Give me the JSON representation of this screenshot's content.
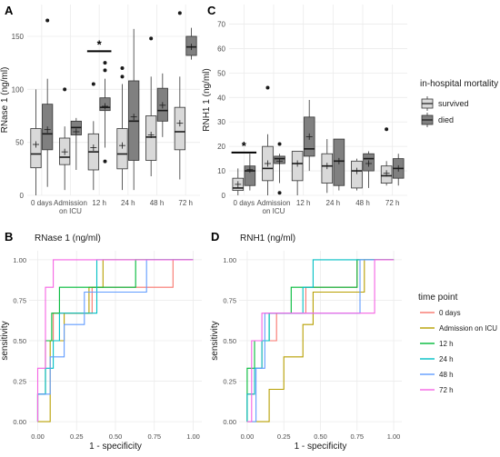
{
  "chart_data": [
    {
      "panel_letter": "A",
      "type": "box",
      "ylabel": "RNase 1 (ng/ml)",
      "ylim": [
        0,
        180
      ],
      "yticks": [
        0,
        50,
        100,
        150
      ],
      "categories": [
        "0 days",
        "Admission on ICU",
        "12 h",
        "24 h",
        "48 h",
        "72 h"
      ],
      "category_lines": [
        [
          "0 days"
        ],
        [
          "Admission",
          "on ICU"
        ],
        [
          "12 h"
        ],
        [
          "24 h"
        ],
        [
          "48 h"
        ],
        [
          "72 h"
        ]
      ],
      "groups": [
        {
          "category": "0 days",
          "series": "survived",
          "min": 0,
          "q1": 26,
          "median": 39,
          "q3": 63,
          "max": 100,
          "mean": 48,
          "outliers": []
        },
        {
          "category": "0 days",
          "series": "died",
          "min": 8,
          "q1": 43,
          "median": 58,
          "q3": 86,
          "max": 110,
          "mean": 62,
          "outliers": [
            165
          ]
        },
        {
          "category": "Admission on ICU",
          "series": "survived",
          "min": 5,
          "q1": 29,
          "median": 36,
          "q3": 54,
          "max": 65,
          "mean": 41,
          "outliers": [
            100
          ]
        },
        {
          "category": "Admission on ICU",
          "series": "died",
          "min": 24,
          "q1": 57,
          "median": 64,
          "q3": 70,
          "max": 73,
          "mean": 60,
          "outliers": []
        },
        {
          "category": "12 h",
          "series": "survived",
          "min": 5,
          "q1": 24,
          "median": 41,
          "q3": 58,
          "max": 70,
          "mean": 45,
          "outliers": [
            105
          ]
        },
        {
          "category": "12 h",
          "series": "died",
          "min": 45,
          "q1": 80,
          "median": 83,
          "q3": 92,
          "max": 110,
          "mean": 84,
          "outliers": [
            125,
            118,
            32
          ]
        },
        {
          "category": "24 h",
          "series": "survived",
          "min": 5,
          "q1": 25,
          "median": 39,
          "q3": 63,
          "max": 105,
          "mean": 47,
          "outliers": [
            120,
            112
          ]
        },
        {
          "category": "24 h",
          "series": "died",
          "min": 5,
          "q1": 33,
          "median": 70,
          "q3": 108,
          "max": 157,
          "mean": 74,
          "outliers": []
        },
        {
          "category": "48 h",
          "series": "survived",
          "min": 18,
          "q1": 33,
          "median": 55,
          "q3": 75,
          "max": 112,
          "mean": 57,
          "outliers": [
            148
          ]
        },
        {
          "category": "48 h",
          "series": "died",
          "min": 55,
          "q1": 70,
          "median": 80,
          "q3": 101,
          "max": 115,
          "mean": 85,
          "outliers": []
        },
        {
          "category": "72 h",
          "series": "survived",
          "min": 15,
          "q1": 43,
          "median": 60,
          "q3": 83,
          "max": 112,
          "mean": 68,
          "outliers": [
            172
          ]
        },
        {
          "category": "72 h",
          "series": "died",
          "min": 128,
          "q1": 132,
          "median": 140,
          "q3": 150,
          "max": 158,
          "mean": 140,
          "outliers": []
        }
      ],
      "significance": {
        "category": "12 h",
        "label": "*",
        "y": 136
      }
    },
    {
      "panel_letter": "C",
      "type": "box",
      "ylabel": "RNH1 1 (ng/ml)",
      "ylim": [
        0,
        78
      ],
      "yticks": [
        0,
        10,
        20,
        30,
        40,
        50,
        60,
        70
      ],
      "categories": [
        "0 days",
        "Admission on ICU",
        "12 h",
        "24 h",
        "48 h",
        "72 h"
      ],
      "category_lines": [
        [
          "0 days"
        ],
        [
          "Admission",
          "on ICU"
        ],
        [
          "12 h"
        ],
        [
          "24 h"
        ],
        [
          "48 h"
        ],
        [
          "72 h"
        ]
      ],
      "groups": [
        {
          "category": "0 days",
          "series": "survived",
          "min": 0,
          "q1": 2,
          "median": 3,
          "q3": 7,
          "max": 11,
          "mean": 4.5,
          "outliers": []
        },
        {
          "category": "0 days",
          "series": "died",
          "min": 2,
          "q1": 4,
          "median": 10,
          "q3": 12,
          "max": 17,
          "mean": 10.5,
          "outliers": []
        },
        {
          "category": "Admission on ICU",
          "series": "survived",
          "min": 0,
          "q1": 6,
          "median": 11,
          "q3": 20,
          "max": 25,
          "mean": 13,
          "outliers": [
            44
          ]
        },
        {
          "category": "Admission on ICU",
          "series": "died",
          "min": 5,
          "q1": 13,
          "median": 15,
          "q3": 16,
          "max": 17,
          "mean": 14,
          "outliers": [
            21,
            1
          ]
        },
        {
          "category": "12 h",
          "series": "survived",
          "min": 0,
          "q1": 6,
          "median": 13,
          "q3": 18,
          "max": 18,
          "mean": 13,
          "outliers": []
        },
        {
          "category": "12 h",
          "series": "died",
          "min": 10,
          "q1": 16,
          "median": 19,
          "q3": 32,
          "max": 39,
          "mean": 24,
          "outliers": []
        },
        {
          "category": "24 h",
          "series": "survived",
          "min": 1,
          "q1": 5,
          "median": 12,
          "q3": 17,
          "max": 23,
          "mean": 12,
          "outliers": []
        },
        {
          "category": "24 h",
          "series": "died",
          "min": 2,
          "q1": 4,
          "median": 14,
          "q3": 23,
          "max": 23,
          "mean": 14,
          "outliers": []
        },
        {
          "category": "48 h",
          "series": "survived",
          "min": 2,
          "q1": 3,
          "median": 10,
          "q3": 14,
          "max": 15,
          "mean": 10,
          "outliers": []
        },
        {
          "category": "48 h",
          "series": "died",
          "min": 3,
          "q1": 10,
          "median": 15,
          "q3": 17,
          "max": 18,
          "mean": 13,
          "outliers": []
        },
        {
          "category": "72 h",
          "series": "survived",
          "min": 4,
          "q1": 5,
          "median": 8,
          "q3": 12,
          "max": 14,
          "mean": 9,
          "outliers": [
            27
          ]
        },
        {
          "category": "72 h",
          "series": "died",
          "min": 4,
          "q1": 7,
          "median": 11,
          "q3": 15,
          "max": 17,
          "mean": 11,
          "outliers": []
        }
      ],
      "significance": {
        "category": "0 days",
        "label": "*",
        "y": 17.5
      }
    },
    {
      "panel_letter": "B",
      "type": "line",
      "title": "RNase 1 (ng/ml)",
      "xlabel": "1 - specificity",
      "ylabel": "sensitivity",
      "xlim": [
        0,
        1
      ],
      "ylim": [
        0,
        1
      ],
      "xticks": [
        0,
        0.25,
        0.5,
        0.75,
        1
      ],
      "yticks": [
        0,
        0.25,
        0.5,
        0.75,
        1
      ],
      "series": [
        {
          "name": "0 days",
          "points": [
            [
              0,
              0
            ],
            [
              0,
              0.17
            ],
            [
              0.05,
              0.17
            ],
            [
              0.05,
              0.5
            ],
            [
              0.1,
              0.5
            ],
            [
              0.1,
              0.67
            ],
            [
              0.35,
              0.67
            ],
            [
              0.35,
              0.83
            ],
            [
              0.87,
              0.83
            ],
            [
              0.87,
              1
            ],
            [
              1,
              1
            ]
          ]
        },
        {
          "name": "Admission on ICU",
          "points": [
            [
              0,
              0
            ],
            [
              0.08,
              0
            ],
            [
              0.08,
              0.5
            ],
            [
              0.17,
              0.5
            ],
            [
              0.17,
              0.67
            ],
            [
              0.33,
              0.67
            ],
            [
              0.33,
              0.83
            ],
            [
              0.42,
              0.83
            ],
            [
              0.42,
              1
            ],
            [
              1,
              1
            ]
          ]
        },
        {
          "name": "12 h",
          "points": [
            [
              0,
              0
            ],
            [
              0,
              0.17
            ],
            [
              0.05,
              0.17
            ],
            [
              0.05,
              0.5
            ],
            [
              0.09,
              0.5
            ],
            [
              0.09,
              0.67
            ],
            [
              0.14,
              0.67
            ],
            [
              0.14,
              0.83
            ],
            [
              0.63,
              0.83
            ],
            [
              0.63,
              1
            ],
            [
              1,
              1
            ]
          ]
        },
        {
          "name": "24 h",
          "points": [
            [
              0,
              0
            ],
            [
              0,
              0.17
            ],
            [
              0.05,
              0.17
            ],
            [
              0.05,
              0.33
            ],
            [
              0.1,
              0.33
            ],
            [
              0.1,
              0.5
            ],
            [
              0.14,
              0.5
            ],
            [
              0.14,
              0.67
            ],
            [
              0.38,
              0.67
            ],
            [
              0.38,
              1
            ],
            [
              1,
              1
            ]
          ]
        },
        {
          "name": "48 h",
          "points": [
            [
              0,
              0
            ],
            [
              0,
              0.17
            ],
            [
              0.08,
              0.17
            ],
            [
              0.08,
              0.4
            ],
            [
              0.17,
              0.4
            ],
            [
              0.17,
              0.6
            ],
            [
              0.3,
              0.6
            ],
            [
              0.3,
              0.8
            ],
            [
              0.7,
              0.8
            ],
            [
              0.7,
              1
            ],
            [
              1,
              1
            ]
          ]
        },
        {
          "name": "72 h",
          "points": [
            [
              0,
              0
            ],
            [
              0,
              0.33
            ],
            [
              0.05,
              0.33
            ],
            [
              0.05,
              0.83
            ],
            [
              0.1,
              0.83
            ],
            [
              0.1,
              1
            ],
            [
              1,
              1
            ]
          ]
        }
      ]
    },
    {
      "panel_letter": "D",
      "type": "line",
      "title": "RNH1 (ng/ml)",
      "xlabel": "1 - specificity",
      "ylabel": "sensitivity",
      "xlim": [
        0,
        1
      ],
      "ylim": [
        0,
        1
      ],
      "xticks": [
        0,
        0.25,
        0.5,
        0.75,
        1
      ],
      "yticks": [
        0,
        0.25,
        0.5,
        0.75,
        1
      ],
      "series": [
        {
          "name": "0 days",
          "points": [
            [
              0,
              0
            ],
            [
              0,
              0.17
            ],
            [
              0.05,
              0.17
            ],
            [
              0.05,
              0.33
            ],
            [
              0.1,
              0.33
            ],
            [
              0.1,
              0.5
            ],
            [
              0.2,
              0.5
            ],
            [
              0.2,
              0.67
            ],
            [
              0.4,
              0.67
            ],
            [
              0.4,
              0.83
            ],
            [
              0.75,
              0.83
            ],
            [
              0.75,
              1
            ],
            [
              1,
              1
            ]
          ]
        },
        {
          "name": "Admission on ICU",
          "points": [
            [
              0,
              0
            ],
            [
              0.15,
              0
            ],
            [
              0.15,
              0.2
            ],
            [
              0.25,
              0.2
            ],
            [
              0.25,
              0.4
            ],
            [
              0.38,
              0.4
            ],
            [
              0.38,
              0.6
            ],
            [
              0.45,
              0.6
            ],
            [
              0.45,
              0.8
            ],
            [
              0.8,
              0.8
            ],
            [
              0.8,
              1
            ],
            [
              1,
              1
            ]
          ]
        },
        {
          "name": "12 h",
          "points": [
            [
              0,
              0
            ],
            [
              0,
              0.33
            ],
            [
              0.05,
              0.33
            ],
            [
              0.05,
              0.5
            ],
            [
              0.15,
              0.5
            ],
            [
              0.15,
              0.67
            ],
            [
              0.3,
              0.67
            ],
            [
              0.3,
              0.83
            ],
            [
              0.75,
              0.83
            ],
            [
              0.75,
              1
            ],
            [
              1,
              1
            ]
          ]
        },
        {
          "name": "24 h",
          "points": [
            [
              0,
              0
            ],
            [
              0,
              0.17
            ],
            [
              0.05,
              0.17
            ],
            [
              0.05,
              0.33
            ],
            [
              0.1,
              0.33
            ],
            [
              0.1,
              0.5
            ],
            [
              0.15,
              0.5
            ],
            [
              0.15,
              0.67
            ],
            [
              0.38,
              0.67
            ],
            [
              0.38,
              0.83
            ],
            [
              0.45,
              0.83
            ],
            [
              0.45,
              1
            ],
            [
              1,
              1
            ]
          ]
        },
        {
          "name": "48 h",
          "points": [
            [
              0,
              0
            ],
            [
              0.06,
              0
            ],
            [
              0.06,
              0.33
            ],
            [
              0.12,
              0.33
            ],
            [
              0.12,
              0.67
            ],
            [
              0.77,
              0.67
            ],
            [
              0.77,
              1
            ],
            [
              1,
              1
            ]
          ]
        },
        {
          "name": "72 h",
          "points": [
            [
              0,
              0
            ],
            [
              0.03,
              0
            ],
            [
              0.03,
              0.5
            ],
            [
              0.1,
              0.5
            ],
            [
              0.1,
              0.67
            ],
            [
              0.87,
              0.67
            ],
            [
              0.87,
              1
            ],
            [
              1,
              1
            ]
          ]
        }
      ]
    }
  ],
  "legends": {
    "mortality": {
      "title": "in-hospital mortality",
      "items": [
        {
          "label": "survived",
          "fill": "#d9d9d9"
        },
        {
          "label": "died",
          "fill": "#808080"
        }
      ]
    },
    "time": {
      "title": "time point",
      "items": [
        {
          "label": "0 days",
          "color": "#f8766d"
        },
        {
          "label": "Admission on ICU",
          "color": "#b79f00"
        },
        {
          "label": "12 h",
          "color": "#00ba38"
        },
        {
          "label": "24 h",
          "color": "#00bfc4"
        },
        {
          "label": "48 h",
          "color": "#619cff"
        },
        {
          "label": "72 h",
          "color": "#f564e3"
        }
      ]
    }
  },
  "colors": {
    "panel_bg": "#ffffff",
    "grid": "#ebebeb",
    "axis": "#333333",
    "box_survived": "#d9d9d9",
    "box_died": "#808080"
  }
}
